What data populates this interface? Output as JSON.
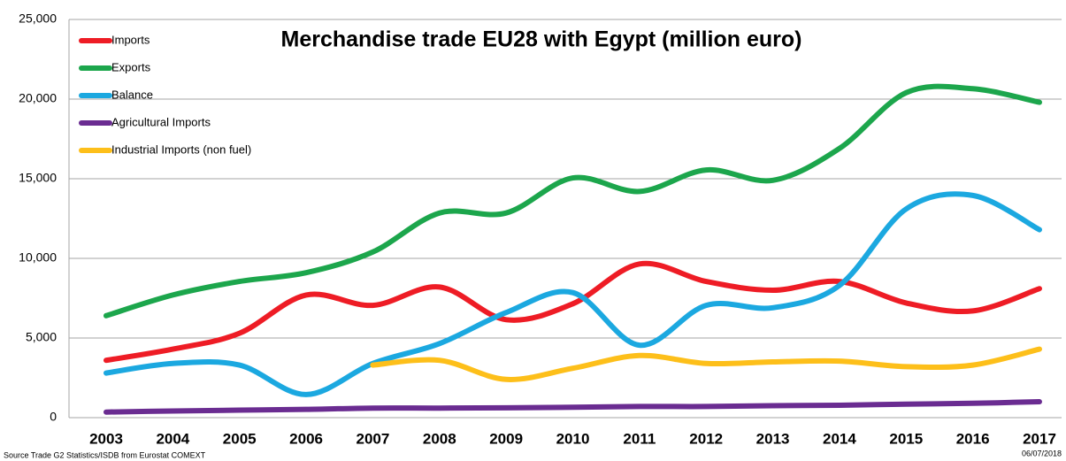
{
  "chart_data": {
    "type": "line",
    "title": "Merchandise trade EU28 with Egypt (million euro)",
    "source": "Source Trade G2 Statistics/ISDB from Eurostat COMEXT",
    "date": "06/07/2018",
    "categories": [
      "2003",
      "2004",
      "2005",
      "2006",
      "2007",
      "2008",
      "2009",
      "2010",
      "2011",
      "2012",
      "2013",
      "2014",
      "2015",
      "2016",
      "2017"
    ],
    "series": [
      {
        "name": "Imports",
        "color": "#ee1c25",
        "values": [
          3600,
          4300,
          5300,
          7700,
          7050,
          8200,
          6150,
          7150,
          9650,
          8550,
          8000,
          8550,
          7200,
          6700,
          8100
        ]
      },
      {
        "name": "Exports",
        "color": "#1ca64c",
        "values": [
          6400,
          7700,
          8550,
          9100,
          10400,
          12850,
          12850,
          15050,
          14200,
          15550,
          14900,
          16900,
          20400,
          20650,
          19800
        ]
      },
      {
        "name": "Balance",
        "color": "#1ba8e0",
        "values": [
          2800,
          3400,
          3300,
          1450,
          3400,
          4650,
          6600,
          7850,
          4550,
          7050,
          6900,
          8300,
          13100,
          13950,
          11800
        ]
      },
      {
        "name": "Agricultural Imports",
        "color": "#6a2c91",
        "values": [
          350,
          420,
          470,
          520,
          600,
          600,
          620,
          650,
          700,
          700,
          750,
          780,
          850,
          900,
          1000
        ]
      },
      {
        "name": "Industrial Imports (non fuel)",
        "color": "#fdbf1a",
        "values": [
          null,
          null,
          null,
          null,
          3300,
          3600,
          2400,
          3100,
          3900,
          3400,
          3500,
          3550,
          3200,
          3300,
          4300
        ]
      }
    ],
    "ylim": [
      0,
      25000
    ],
    "yticks": [
      0,
      {
        "value": 5000,
        "label": "5,000"
      },
      {
        "value": 10000,
        "label": "10,000"
      },
      {
        "value": 15000,
        "label": "15,000"
      },
      {
        "value": 20000,
        "label": "20,000"
      },
      {
        "value": 25000,
        "label": "25,000"
      }
    ],
    "grid": true,
    "legend": "top-left"
  }
}
